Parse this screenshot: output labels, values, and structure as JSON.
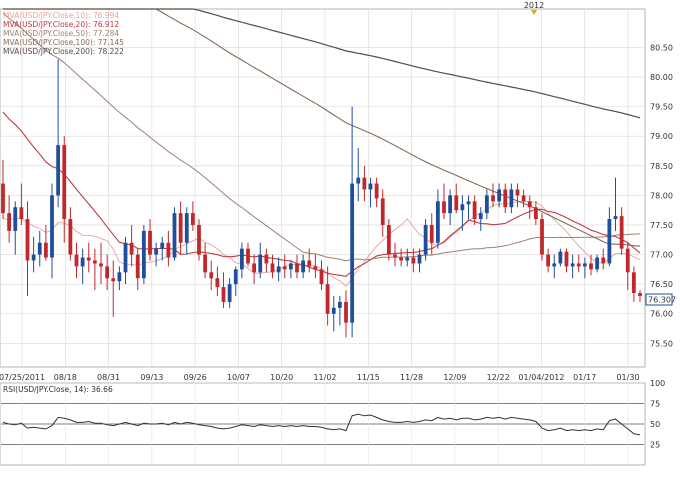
{
  "chart_data": [
    {
      "type": "candlestick",
      "instrument": "USD/JPY",
      "marker_label": "2012",
      "x_tick_labels": [
        "07/25/2011",
        "08/18",
        "08/31",
        "09/13",
        "09/26",
        "10/07",
        "10/20",
        "11/02",
        "11/15",
        "11/28",
        "12/09",
        "12/22",
        "01/04/2012",
        "01/17",
        "01/30"
      ],
      "y_tick_labels": [
        "75.50",
        "76.00",
        "76.50",
        "77.00",
        "77.50",
        "78.00",
        "78.50",
        "79.00",
        "79.50",
        "80.00",
        "80.50"
      ],
      "ylim": [
        75.1,
        81.15
      ],
      "last_price_label": "76.307",
      "last_price": 76.307,
      "colors": {
        "up": "#1f4e9c",
        "down": "#c0282d",
        "grid": "#d9d9d9",
        "mva10": "#e8a0a0",
        "mva20": "#c03a40",
        "mva50": "#a08070",
        "mva100": "#8a6a55",
        "mva200": "#5a4a42"
      },
      "legend": [
        {
          "label": "MVA(USD/JPY.Close,10): 76.994",
          "color": "#e8a0a0"
        },
        {
          "label": "MVA(USD/JPY.Close,20): 76.912",
          "color": "#c03a40"
        },
        {
          "label": "MVA(USD/JPY.Close,50): 77.284",
          "color": "#a08070"
        },
        {
          "label": "MVA(USD/JPY.Close,100): 77.145",
          "color": "#8a6a55"
        },
        {
          "label": "MVA(USD/JPY.Close,200): 78.222",
          "color": "#5a4a42"
        }
      ],
      "candles": [
        [
          78.2,
          78.6,
          77.6,
          77.7
        ],
        [
          77.7,
          78.0,
          77.2,
          77.4
        ],
        [
          77.4,
          77.9,
          77.0,
          77.8
        ],
        [
          77.8,
          78.2,
          77.5,
          77.6
        ],
        [
          77.6,
          77.9,
          76.3,
          76.9
        ],
        [
          76.9,
          77.3,
          76.7,
          77.0
        ],
        [
          77.0,
          77.4,
          76.8,
          77.2
        ],
        [
          77.2,
          77.5,
          76.9,
          76.95
        ],
        [
          76.95,
          78.2,
          76.6,
          78.0
        ],
        [
          78.0,
          80.3,
          77.8,
          78.85
        ],
        [
          78.85,
          79.0,
          77.2,
          77.6
        ],
        [
          77.6,
          77.8,
          76.9,
          77.0
        ],
        [
          77.0,
          77.2,
          76.6,
          76.8
        ],
        [
          76.8,
          77.1,
          76.5,
          76.95
        ],
        [
          76.95,
          77.2,
          76.7,
          76.9
        ],
        [
          76.9,
          77.1,
          76.4,
          76.85
        ],
        [
          76.85,
          77.2,
          76.5,
          76.8
        ],
        [
          76.8,
          77.0,
          76.4,
          76.6
        ],
        [
          76.6,
          76.9,
          75.95,
          76.55
        ],
        [
          76.55,
          76.8,
          76.4,
          76.7
        ],
        [
          76.7,
          77.3,
          76.5,
          77.2
        ],
        [
          77.2,
          77.5,
          76.8,
          77.0
        ],
        [
          77.0,
          77.1,
          76.4,
          76.6
        ],
        [
          76.6,
          77.5,
          76.5,
          77.4
        ],
        [
          77.4,
          77.6,
          76.9,
          77.0
        ],
        [
          77.0,
          77.2,
          76.8,
          77.1
        ],
        [
          77.1,
          77.3,
          76.9,
          77.2
        ],
        [
          77.2,
          77.4,
          76.8,
          76.95
        ],
        [
          76.95,
          77.8,
          76.9,
          77.7
        ],
        [
          77.7,
          77.9,
          77.0,
          77.2
        ],
        [
          77.2,
          77.8,
          77.0,
          77.7
        ],
        [
          77.7,
          77.9,
          77.4,
          77.5
        ],
        [
          77.5,
          77.6,
          76.9,
          77.0
        ],
        [
          77.0,
          77.2,
          76.6,
          76.7
        ],
        [
          76.7,
          76.9,
          76.4,
          76.6
        ],
        [
          76.6,
          76.8,
          76.3,
          76.45
        ],
        [
          76.45,
          76.7,
          76.1,
          76.2
        ],
        [
          76.2,
          76.6,
          76.1,
          76.5
        ],
        [
          76.5,
          76.8,
          76.3,
          76.75
        ],
        [
          76.75,
          77.2,
          76.6,
          77.1
        ],
        [
          77.1,
          77.2,
          76.8,
          76.85
        ],
        [
          76.85,
          77.0,
          76.5,
          76.7
        ],
        [
          76.7,
          77.2,
          76.6,
          77.0
        ],
        [
          77.0,
          77.1,
          76.7,
          76.85
        ],
        [
          76.85,
          77.0,
          76.6,
          76.7
        ],
        [
          76.7,
          76.95,
          76.55,
          76.8
        ],
        [
          76.8,
          77.0,
          76.6,
          76.75
        ],
        [
          76.75,
          76.9,
          76.6,
          76.85
        ],
        [
          76.85,
          77.0,
          76.6,
          76.7
        ],
        [
          76.7,
          77.0,
          76.6,
          76.9
        ],
        [
          76.9,
          77.1,
          76.7,
          76.8
        ],
        [
          76.8,
          77.0,
          76.6,
          76.75
        ],
        [
          76.75,
          76.9,
          76.4,
          76.5
        ],
        [
          76.5,
          76.8,
          75.8,
          76.0
        ],
        [
          76.0,
          76.3,
          75.7,
          76.1
        ],
        [
          76.1,
          76.3,
          75.8,
          76.2
        ],
        [
          76.2,
          76.4,
          75.6,
          75.85
        ],
        [
          75.85,
          79.5,
          75.6,
          78.2
        ],
        [
          78.2,
          78.8,
          77.9,
          78.3
        ],
        [
          78.3,
          78.5,
          77.9,
          78.1
        ],
        [
          78.1,
          78.3,
          77.8,
          78.2
        ],
        [
          78.2,
          78.3,
          77.8,
          77.95
        ],
        [
          77.95,
          78.1,
          77.3,
          77.5
        ],
        [
          77.5,
          77.6,
          76.9,
          77.0
        ],
        [
          77.0,
          77.2,
          76.8,
          76.95
        ],
        [
          76.95,
          77.1,
          76.8,
          76.9
        ],
        [
          76.9,
          77.1,
          76.8,
          76.95
        ],
        [
          76.95,
          77.1,
          76.7,
          76.85
        ],
        [
          76.85,
          77.1,
          76.7,
          77.0
        ],
        [
          77.0,
          77.6,
          76.9,
          77.5
        ],
        [
          77.5,
          77.7,
          77.0,
          77.2
        ],
        [
          77.2,
          78.1,
          77.1,
          77.9
        ],
        [
          77.9,
          78.2,
          77.6,
          77.7
        ],
        [
          77.7,
          78.1,
          77.5,
          78.0
        ],
        [
          78.0,
          78.2,
          77.7,
          77.75
        ],
        [
          77.75,
          78.0,
          77.4,
          77.85
        ],
        [
          77.85,
          78.0,
          77.6,
          77.9
        ],
        [
          77.9,
          78.0,
          77.5,
          77.6
        ],
        [
          77.6,
          77.8,
          77.4,
          77.7
        ],
        [
          77.7,
          78.1,
          77.6,
          78.0
        ],
        [
          78.0,
          78.2,
          77.8,
          77.9
        ],
        [
          77.9,
          78.2,
          77.8,
          78.1
        ],
        [
          78.1,
          78.2,
          77.7,
          77.8
        ],
        [
          77.8,
          78.2,
          77.7,
          78.1
        ],
        [
          78.1,
          78.2,
          77.8,
          78.0
        ],
        [
          78.0,
          78.1,
          77.8,
          77.9
        ],
        [
          77.9,
          78.0,
          77.6,
          77.8
        ],
        [
          77.8,
          77.9,
          77.5,
          77.6
        ],
        [
          77.6,
          77.7,
          76.9,
          77.0
        ],
        [
          77.0,
          77.1,
          76.7,
          76.8
        ],
        [
          76.8,
          77.0,
          76.6,
          76.85
        ],
        [
          76.85,
          77.1,
          76.8,
          77.05
        ],
        [
          77.05,
          77.1,
          76.7,
          76.8
        ],
        [
          76.8,
          77.0,
          76.6,
          76.85
        ],
        [
          76.85,
          77.0,
          76.7,
          76.8
        ],
        [
          76.8,
          76.95,
          76.6,
          76.85
        ],
        [
          76.85,
          77.0,
          76.65,
          76.75
        ],
        [
          76.75,
          77.0,
          76.7,
          76.95
        ],
        [
          76.95,
          77.1,
          76.75,
          76.85
        ],
        [
          76.85,
          77.8,
          76.8,
          77.6
        ],
        [
          77.6,
          78.3,
          77.4,
          77.65
        ],
        [
          77.65,
          77.8,
          77.0,
          77.1
        ],
        [
          77.1,
          77.2,
          76.4,
          76.7
        ],
        [
          76.7,
          76.8,
          76.2,
          76.35
        ],
        [
          76.35,
          76.4,
          76.2,
          76.3
        ]
      ]
    },
    {
      "type": "line",
      "indicator": "RSI",
      "legend_label": "RSI(USD/JPY.Close, 14): 36.66",
      "color": "#333333",
      "y_tick_labels": [
        "25",
        "50",
        "75",
        "100"
      ],
      "ylim": [
        0,
        100
      ],
      "values": [
        52,
        50,
        49,
        51,
        45,
        46,
        45,
        44,
        48,
        58,
        57,
        55,
        52,
        52,
        53,
        51,
        51,
        49,
        48,
        50,
        52,
        50,
        48,
        51,
        50,
        50,
        51,
        49,
        52,
        50,
        52,
        51,
        49,
        48,
        47,
        45,
        44,
        45,
        47,
        49,
        48,
        47,
        49,
        48,
        47,
        48,
        47,
        48,
        47,
        48,
        47,
        47,
        46,
        44,
        43,
        44,
        42,
        60,
        62,
        60,
        61,
        58,
        55,
        53,
        52,
        52,
        53,
        52,
        53,
        55,
        54,
        58,
        56,
        57,
        55,
        57,
        57,
        55,
        56,
        58,
        57,
        58,
        56,
        58,
        57,
        56,
        55,
        53,
        45,
        42,
        43,
        45,
        42,
        43,
        42,
        43,
        42,
        44,
        43,
        54,
        56,
        50,
        44,
        38,
        37
      ]
    }
  ]
}
